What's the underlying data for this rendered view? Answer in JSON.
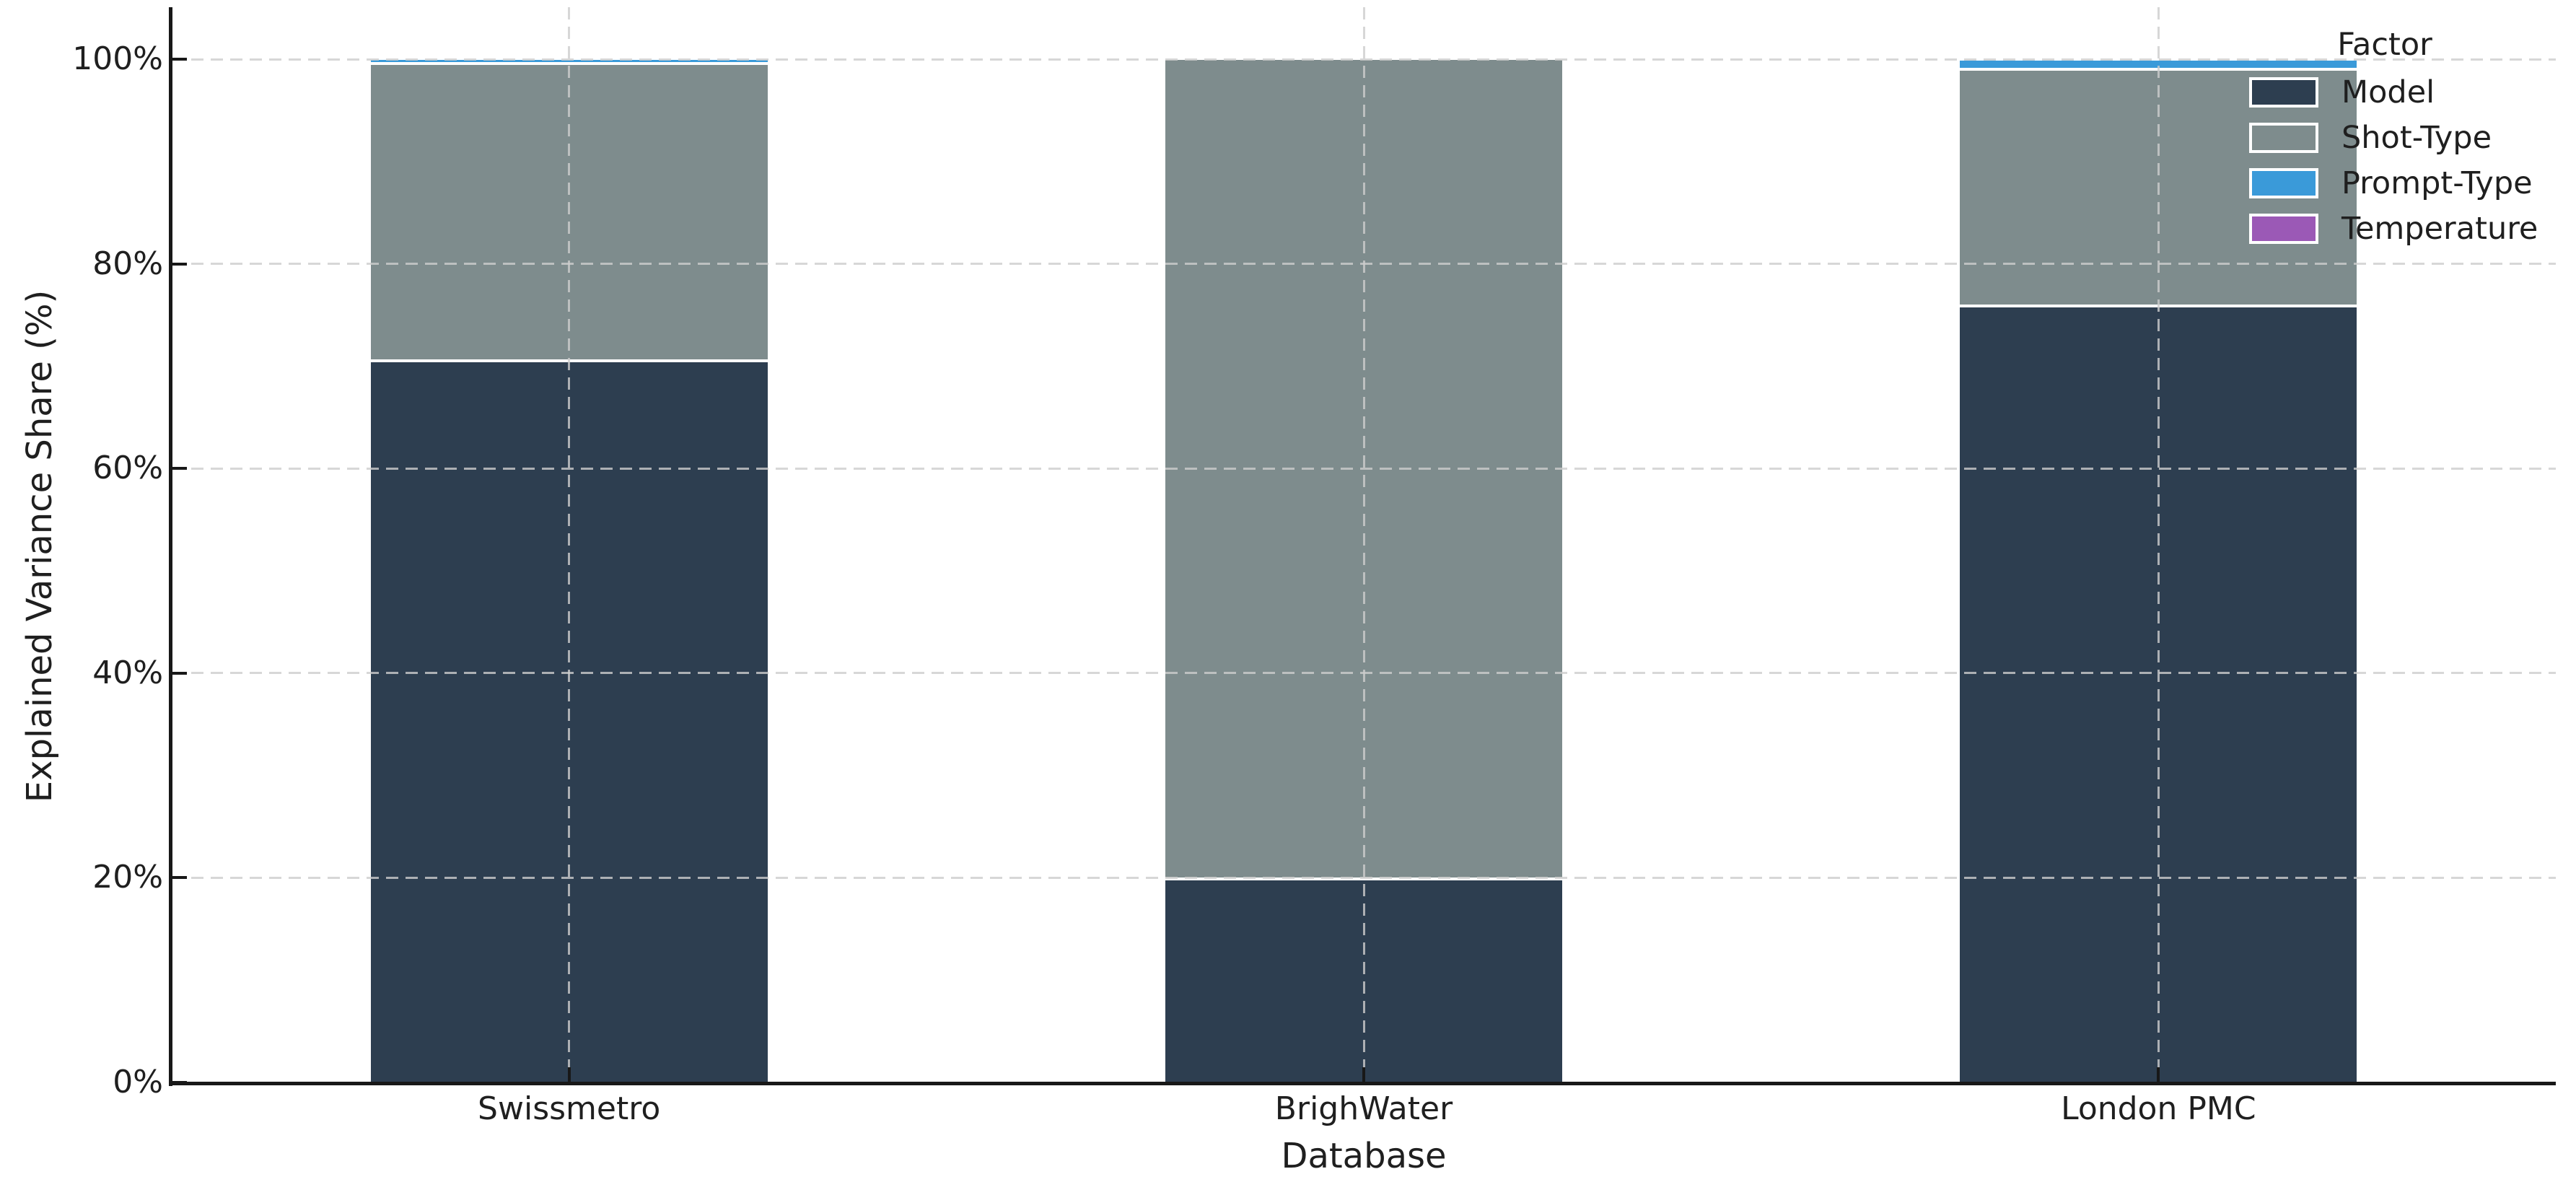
{
  "chart_data": {
    "type": "bar",
    "stacked": true,
    "orientation": "vertical",
    "title": "",
    "xlabel": "Database",
    "ylabel": "Explained Variance Share (%)",
    "categories": [
      "Swissmetro",
      "BrighWater",
      "London PMC"
    ],
    "series": [
      {
        "name": "Model",
        "color": "#2d3e50",
        "values": [
          70.5,
          19.9,
          75.9
        ]
      },
      {
        "name": "Shot-Type",
        "color": "#7e8c8d",
        "values": [
          29.1,
          80.0,
          23.1
        ]
      },
      {
        "name": "Prompt-Type",
        "color": "#3a9ad9",
        "values": [
          0.3,
          0.1,
          0.85
        ]
      },
      {
        "name": "Temperature",
        "color": "#9b59b6",
        "values": [
          0.0,
          0.0,
          0.0
        ]
      }
    ],
    "value_unit": "%",
    "y_ticks": [
      {
        "value": 0,
        "label": "0%"
      },
      {
        "value": 20,
        "label": "20%"
      },
      {
        "value": 40,
        "label": "40%"
      },
      {
        "value": 60,
        "label": "60%"
      },
      {
        "value": 80,
        "label": "80%"
      },
      {
        "value": 100,
        "label": "100%"
      }
    ],
    "ylim": [
      0,
      104.8
    ],
    "grid": {
      "x": true,
      "y": true,
      "style": "dashed",
      "above_bars": true
    },
    "legend": {
      "title": "Factor",
      "position": "upper-right",
      "frame": false
    }
  },
  "colors": {
    "background": "#ffffff",
    "axis": "#181818",
    "grid": "#cdcdcd",
    "text": "#1f1f1f",
    "bar_edge": "#ffffff"
  }
}
